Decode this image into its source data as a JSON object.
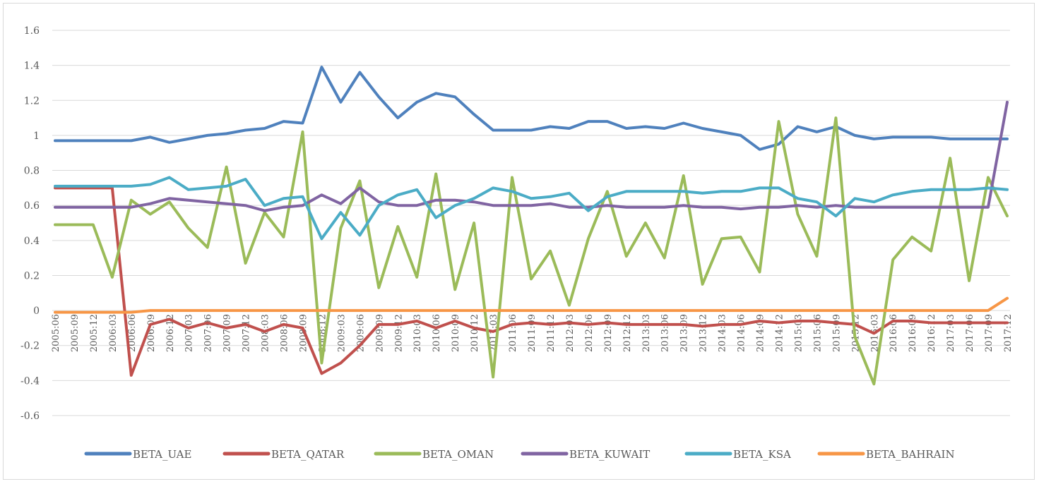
{
  "chart_data": {
    "type": "line",
    "title": "",
    "xlabel": "",
    "ylabel": "",
    "ylim": [
      -0.6,
      1.6
    ],
    "ytick_step": 0.2,
    "yticks": [
      "-0.6",
      "-0.4",
      "-0.2",
      "0",
      "0.2",
      "0.4",
      "0.6",
      "0.8",
      "1",
      "1.2",
      "1.4",
      "1.6"
    ],
    "grid": "horizontal",
    "legend_position": "bottom",
    "x": [
      "2005:06",
      "2005:09",
      "2005:12",
      "2006:03",
      "2006:06",
      "2006:09",
      "2006:12",
      "2007:03",
      "2007:06",
      "2007:09",
      "2007:12",
      "2008:03",
      "2008:06",
      "2008:09",
      "2008:12",
      "2009:03",
      "2009:06",
      "2009:09",
      "2009:12",
      "2010:03",
      "2010:06",
      "2010:09",
      "2010:12",
      "2011:03",
      "2011:06",
      "2011:09",
      "2011:12",
      "2012:03",
      "2012:06",
      "2012:09",
      "2012:12",
      "2013:03",
      "2013:06",
      "2013:09",
      "2013:12",
      "2014:03",
      "2014:06",
      "2014:09",
      "2014:12",
      "2015:03",
      "2015:06",
      "2015:09",
      "2015:12",
      "2016:03",
      "2016:06",
      "2016:09",
      "2016:12",
      "2017:03",
      "2017:06",
      "2017:09",
      "2017:12"
    ],
    "series": [
      {
        "name": "BETA_UAE",
        "color": "#4F81BD",
        "values": [
          0.97,
          0.97,
          0.97,
          0.97,
          0.97,
          0.99,
          0.96,
          0.98,
          1.0,
          1.01,
          1.03,
          1.04,
          1.08,
          1.07,
          1.39,
          1.19,
          1.36,
          1.22,
          1.1,
          1.19,
          1.24,
          1.22,
          1.12,
          1.03,
          1.03,
          1.03,
          1.05,
          1.04,
          1.08,
          1.08,
          1.04,
          1.05,
          1.04,
          1.07,
          1.04,
          1.02,
          1.0,
          0.92,
          0.95,
          1.05,
          1.02,
          1.05,
          1.0,
          0.98,
          0.99,
          0.99,
          0.99,
          0.98,
          0.98,
          0.98,
          0.98
        ]
      },
      {
        "name": "BETA_QATAR",
        "color": "#C0504D",
        "values": [
          0.7,
          0.7,
          0.7,
          0.7,
          -0.37,
          -0.08,
          -0.05,
          -0.1,
          -0.07,
          -0.1,
          -0.08,
          -0.12,
          -0.08,
          -0.1,
          -0.36,
          -0.3,
          -0.2,
          -0.08,
          -0.08,
          -0.06,
          -0.1,
          -0.06,
          -0.1,
          -0.12,
          -0.08,
          -0.07,
          -0.08,
          -0.07,
          -0.08,
          -0.07,
          -0.08,
          -0.08,
          -0.08,
          -0.08,
          -0.09,
          -0.08,
          -0.08,
          -0.06,
          -0.07,
          -0.06,
          -0.06,
          -0.07,
          -0.08,
          -0.13,
          -0.06,
          -0.06,
          -0.07,
          -0.07,
          -0.07,
          -0.07,
          -0.07
        ]
      },
      {
        "name": "BETA_OMAN",
        "color": "#9BBB59",
        "values": [
          0.49,
          0.49,
          0.49,
          0.19,
          0.63,
          0.55,
          0.62,
          0.47,
          0.36,
          0.82,
          0.27,
          0.56,
          0.42,
          1.02,
          -0.3,
          0.47,
          0.74,
          0.13,
          0.48,
          0.19,
          0.78,
          0.12,
          0.5,
          -0.38,
          0.76,
          0.18,
          0.34,
          0.03,
          0.41,
          0.68,
          0.31,
          0.5,
          0.3,
          0.77,
          0.15,
          0.41,
          0.42,
          0.22,
          1.08,
          0.55,
          0.31,
          1.1,
          -0.15,
          -0.42,
          0.29,
          0.42,
          0.34,
          0.87,
          0.17,
          0.76,
          0.54
        ]
      },
      {
        "name": "BETA_KUWAIT",
        "color": "#8064A2",
        "values": [
          0.59,
          0.59,
          0.59,
          0.59,
          0.59,
          0.61,
          0.64,
          0.63,
          0.62,
          0.61,
          0.6,
          0.57,
          0.59,
          0.6,
          0.66,
          0.61,
          0.7,
          0.62,
          0.6,
          0.6,
          0.63,
          0.63,
          0.62,
          0.6,
          0.6,
          0.6,
          0.61,
          0.59,
          0.59,
          0.6,
          0.59,
          0.59,
          0.59,
          0.6,
          0.59,
          0.59,
          0.58,
          0.59,
          0.59,
          0.6,
          0.59,
          0.6,
          0.59,
          0.59,
          0.59,
          0.59,
          0.59,
          0.59,
          0.59,
          0.59,
          1.19
        ]
      },
      {
        "name": "BETA_KSA",
        "color": "#4BACC6",
        "values": [
          0.71,
          0.71,
          0.71,
          0.71,
          0.71,
          0.72,
          0.76,
          0.69,
          0.7,
          0.71,
          0.75,
          0.6,
          0.64,
          0.65,
          0.41,
          0.56,
          0.43,
          0.6,
          0.66,
          0.69,
          0.53,
          0.6,
          0.64,
          0.7,
          0.68,
          0.64,
          0.65,
          0.67,
          0.57,
          0.65,
          0.68,
          0.68,
          0.68,
          0.68,
          0.67,
          0.68,
          0.68,
          0.7,
          0.7,
          0.64,
          0.62,
          0.54,
          0.64,
          0.62,
          0.66,
          0.68,
          0.69,
          0.69,
          0.69,
          0.7,
          0.69
        ]
      },
      {
        "name": "BETA_BAHRAIN",
        "color": "#F79646",
        "values": [
          -0.01,
          -0.01,
          -0.01,
          -0.01,
          -0.01,
          0.0,
          0.0,
          0.0,
          0.0,
          0.0,
          0.0,
          0.0,
          0.0,
          0.0,
          0.0,
          0.0,
          0.0,
          0.0,
          0.0,
          0.0,
          0.0,
          0.0,
          0.0,
          0.0,
          0.0,
          0.0,
          0.0,
          0.0,
          0.0,
          0.0,
          0.0,
          0.0,
          0.0,
          0.0,
          0.0,
          0.0,
          0.0,
          0.0,
          0.0,
          0.0,
          0.0,
          0.0,
          0.0,
          0.0,
          0.0,
          0.0,
          0.0,
          0.0,
          0.0,
          0.0,
          0.07
        ]
      }
    ]
  }
}
